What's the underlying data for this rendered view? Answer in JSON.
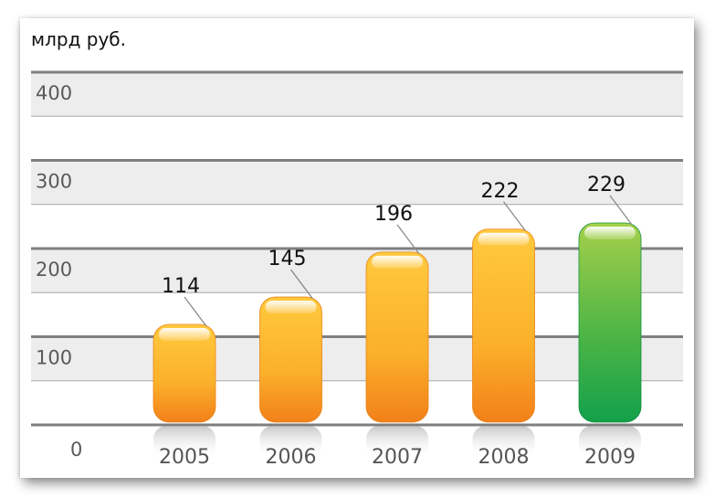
{
  "chart_data": {
    "type": "bar",
    "unit_label": "млрд руб.",
    "title": "",
    "xlabel": "",
    "ylabel": "млрд руб.",
    "categories": [
      "2005",
      "2006",
      "2007",
      "2008",
      "2009"
    ],
    "values": [
      114,
      145,
      196,
      222,
      229
    ],
    "ylim": [
      0,
      400
    ],
    "yticks": [
      "0",
      "100",
      "200",
      "300",
      "400"
    ],
    "grid": true,
    "legend": "none",
    "colors": {
      "bar_orange_top": "#ffc13a",
      "bar_orange_bottom": "#f28a1c",
      "bar_green_top": "#9ccb45",
      "bar_green_bottom": "#1aa34a",
      "band_fill": "#ededee",
      "grid_line": "#8a8a8a"
    }
  }
}
